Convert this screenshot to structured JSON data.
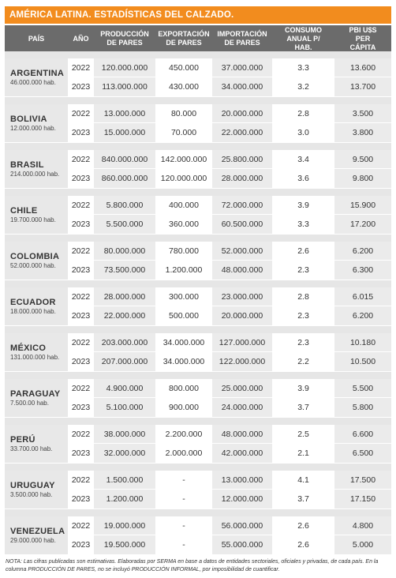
{
  "title": "AMÉRICA LATINA. ESTADÍSTICAS DEL CALZADO.",
  "columns": [
    "PAÍS",
    "AÑO",
    "PRODUCCIÓN DE PARES",
    "EXPORTACIÓN DE PARES",
    "IMPORTACIÓN DE PARES",
    "CONSUMO ANUAL P/ HAB.",
    "PBI U$S PER CÁPITA"
  ],
  "countries": [
    {
      "name": "ARGENTINA",
      "population": "46.000.000 hab.",
      "rows": [
        {
          "year": "2022",
          "production": "120.000.000",
          "export": "450.000",
          "import": "37.000.000",
          "consumption": "3.3",
          "gdp": "13.600"
        },
        {
          "year": "2023",
          "production": "113.000.000",
          "export": "430.000",
          "import": "34.000.000",
          "consumption": "3.2",
          "gdp": "13.700"
        }
      ]
    },
    {
      "name": "BOLIVIA",
      "population": "12.000.000 hab.",
      "rows": [
        {
          "year": "2022",
          "production": "13.000.000",
          "export": "80.000",
          "import": "20.000.000",
          "consumption": "2.8",
          "gdp": "3.500"
        },
        {
          "year": "2023",
          "production": "15.000.000",
          "export": "70.000",
          "import": "22.000.000",
          "consumption": "3.0",
          "gdp": "3.800"
        }
      ]
    },
    {
      "name": "BRASIL",
      "population": "214.000.000 hab.",
      "rows": [
        {
          "year": "2022",
          "production": "840.000.000",
          "export": "142.000.000",
          "import": "25.800.000",
          "consumption": "3.4",
          "gdp": "9.500"
        },
        {
          "year": "2023",
          "production": "860.000.000",
          "export": "120.000.000",
          "import": "28.000.000",
          "consumption": "3.6",
          "gdp": "9.800"
        }
      ]
    },
    {
      "name": "CHILE",
      "population": "19.700.000 hab.",
      "rows": [
        {
          "year": "2022",
          "production": "5.800.000",
          "export": "400.000",
          "import": "72.000.000",
          "consumption": "3.9",
          "gdp": "15.900"
        },
        {
          "year": "2023",
          "production": "5.500.000",
          "export": "360.000",
          "import": "60.500.000",
          "consumption": "3.3",
          "gdp": "17.200"
        }
      ]
    },
    {
      "name": "COLOMBIA",
      "population": "52.000.000 hab.",
      "rows": [
        {
          "year": "2022",
          "production": "80.000.000",
          "export": "780.000",
          "import": "52.000.000",
          "consumption": "2.6",
          "gdp": "6.200"
        },
        {
          "year": "2023",
          "production": "73.500.000",
          "export": "1.200.000",
          "import": "48.000.000",
          "consumption": "2.3",
          "gdp": "6.300"
        }
      ]
    },
    {
      "name": "ECUADOR",
      "population": "18.000.000 hab.",
      "rows": [
        {
          "year": "2022",
          "production": "28.000.000",
          "export": "300.000",
          "import": "23.000.000",
          "consumption": "2.8",
          "gdp": "6.015"
        },
        {
          "year": "2023",
          "production": "22.000.000",
          "export": "500.000",
          "import": "20.000.000",
          "consumption": "2.3",
          "gdp": "6.200"
        }
      ]
    },
    {
      "name": "MÉXICO",
      "population": "131.000.000 hab.",
      "rows": [
        {
          "year": "2022",
          "production": "203.000.000",
          "export": "34.000.000",
          "import": "127.000.000",
          "consumption": "2.3",
          "gdp": "10.180"
        },
        {
          "year": "2023",
          "production": "207.000.000",
          "export": "34.000.000",
          "import": "122.000.000",
          "consumption": "2.2",
          "gdp": "10.500"
        }
      ]
    },
    {
      "name": "PARAGUAY",
      "population": "7.500.00 hab.",
      "rows": [
        {
          "year": "2022",
          "production": "4.900.000",
          "export": "800.000",
          "import": "25.000.000",
          "consumption": "3.9",
          "gdp": "5.500"
        },
        {
          "year": "2023",
          "production": "5.100.000",
          "export": "900.000",
          "import": "24.000.000",
          "consumption": "3.7",
          "gdp": "5.800"
        }
      ]
    },
    {
      "name": "PERÚ",
      "population": "33.700.00 hab.",
      "rows": [
        {
          "year": "2022",
          "production": "38.000.000",
          "export": "2.200.000",
          "import": "48.000.000",
          "consumption": "2.5",
          "gdp": "6.600"
        },
        {
          "year": "2023",
          "production": "32.000.000",
          "export": "2.000.000",
          "import": "42.000.000",
          "consumption": "2.1",
          "gdp": "6.500"
        }
      ]
    },
    {
      "name": "URUGUAY",
      "population": "3.500.000 hab.",
      "rows": [
        {
          "year": "2022",
          "production": "1.500.000",
          "export": "-",
          "import": "13.000.000",
          "consumption": "4.1",
          "gdp": "17.500"
        },
        {
          "year": "2023",
          "production": "1.200.000",
          "export": "-",
          "import": "12.000.000",
          "consumption": "3.7",
          "gdp": "17.150"
        }
      ]
    },
    {
      "name": "VENEZUELA",
      "population": "29.000.000 hab.",
      "rows": [
        {
          "year": "2022",
          "production": "19.000.000",
          "export": "-",
          "import": "56.000.000",
          "consumption": "2.6",
          "gdp": "4.800"
        },
        {
          "year": "2023",
          "production": "19.500.000",
          "export": "-",
          "import": "55.000.000",
          "consumption": "2.6",
          "gdp": "5.000"
        }
      ]
    }
  ],
  "note": "NOTA: Las cifras publicadas son estimativas. Elaboradas por SERMA en base a datos de entidades sectoriales, oficiales y privadas, de cada país. En la columna PRODUCCIÓN DE PARES, no se incluyó PRODUCCIÓN INFORMAL, por imposibilidad de cuantificar.",
  "colors": {
    "title_bg": "#f28c1e",
    "header_bg": "#6b6b6b",
    "shade": "#ebebeb",
    "separator": "#e6e6e6"
  }
}
